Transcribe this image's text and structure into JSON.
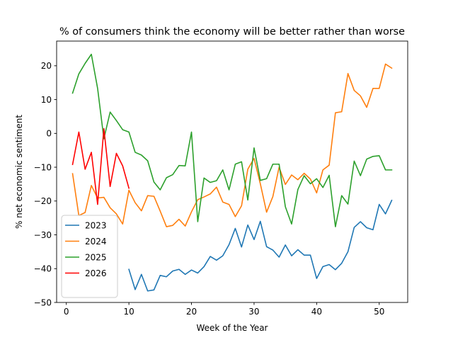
{
  "chart_data": {
    "type": "line",
    "title": "% of consumers think the economy will be better rather than worse",
    "xlabel": "Week of the Year",
    "ylabel": "% net economic sentiment",
    "xlim": [
      -1.55,
      54.55
    ],
    "ylim": [
      -50,
      27.3
    ],
    "xticks": [
      0,
      10,
      20,
      30,
      40,
      50
    ],
    "yticks": [
      -50,
      -40,
      -30,
      -20,
      -10,
      0,
      10,
      20
    ],
    "legend_position": "lower-left",
    "series": [
      {
        "name": "2023",
        "color": "#1f77b4",
        "x": [
          10,
          11,
          12,
          13,
          14,
          15,
          16,
          17,
          18,
          19,
          20,
          21,
          22,
          23,
          24,
          25,
          26,
          27,
          28,
          29,
          30,
          31,
          32,
          33,
          34,
          35,
          36,
          37,
          38,
          39,
          40,
          41,
          42,
          43,
          44,
          45,
          46,
          47,
          48,
          49,
          50,
          51,
          52
        ],
        "values": [
          -40.2,
          -46.2,
          -41.7,
          -46.6,
          -46.3,
          -42,
          -42.4,
          -40.7,
          -40.2,
          -41.7,
          -40.4,
          -41.3,
          -39.4,
          -36.4,
          -37.5,
          -36.2,
          -32.9,
          -28.1,
          -33.6,
          -27.1,
          -31.4,
          -26,
          -33.5,
          -34.5,
          -36.6,
          -33,
          -36.2,
          -34.4,
          -36,
          -36,
          -42.9,
          -39.4,
          -38.8,
          -40.3,
          -38.4,
          -35,
          -27.8,
          -26.1,
          -27.9,
          -28.5,
          -21,
          -23.8,
          -19.8
        ]
      },
      {
        "name": "2024",
        "color": "#ff7f0e",
        "x": [
          1,
          2,
          3,
          4,
          5,
          6,
          7,
          8,
          9,
          10,
          11,
          12,
          13,
          14,
          15,
          16,
          17,
          18,
          19,
          20,
          21,
          22,
          23,
          24,
          25,
          26,
          27,
          28,
          29,
          30,
          31,
          32,
          33,
          34,
          35,
          36,
          37,
          38,
          39,
          40,
          41,
          42,
          43,
          44,
          45,
          46,
          47,
          48,
          49,
          50,
          51,
          52
        ],
        "values": [
          -11.9,
          -24.3,
          -23.4,
          -15.4,
          -19.1,
          -18.9,
          -22,
          -23.8,
          -26.8,
          -16.8,
          -20.5,
          -22.9,
          -18.4,
          -18.6,
          -23,
          -27.6,
          -27.2,
          -25.4,
          -27.4,
          -23.2,
          -19.6,
          -18.8,
          -17.9,
          -15.9,
          -20.3,
          -21,
          -24.6,
          -21.4,
          -10.6,
          -7.4,
          -14.9,
          -23.3,
          -18.7,
          -10,
          -15.1,
          -12.3,
          -13.7,
          -11.8,
          -13.5,
          -17.6,
          -10.8,
          -9.4,
          6.1,
          6.4,
          17.7,
          12.7,
          11.1,
          7.7,
          13.3,
          13.3,
          20.5,
          19.3
        ]
      },
      {
        "name": "2025",
        "color": "#2ca02c",
        "x": [
          1,
          2,
          3,
          4,
          5,
          6,
          7,
          8,
          9,
          10,
          11,
          12,
          13,
          14,
          15,
          16,
          17,
          18,
          19,
          20,
          21,
          22,
          23,
          24,
          25,
          26,
          27,
          28,
          29,
          30,
          31,
          32,
          33,
          34,
          35,
          36,
          37,
          38,
          39,
          40,
          41,
          42,
          43,
          44,
          45,
          46,
          47,
          48,
          49,
          50,
          51,
          52
        ],
        "values": [
          11.9,
          17.6,
          20.7,
          23.4,
          13.3,
          -1.6,
          6.3,
          3.8,
          1.1,
          0.4,
          -5.6,
          -6.4,
          -8.1,
          -14.4,
          -16.7,
          -13.1,
          -12.2,
          -9.5,
          -9.6,
          0.4,
          -26.1,
          -13.2,
          -14.5,
          -14,
          -10.8,
          -16.7,
          -9.1,
          -8.4,
          -19.7,
          -4.3,
          -13.9,
          -13.4,
          -9.1,
          -9.1,
          -21.7,
          -26.8,
          -16.6,
          -12.5,
          -14.9,
          -13.4,
          -16,
          -12.4,
          -27.6,
          -18.4,
          -20.9,
          -8.2,
          -12.5,
          -7.6,
          -6.8,
          -6.6,
          -10.8,
          -10.8
        ]
      },
      {
        "name": "2026",
        "color": "#ff0000",
        "x": [
          1,
          2,
          3,
          4,
          5,
          6,
          7,
          8,
          9,
          10
        ],
        "values": [
          -9.2,
          0.4,
          -10.6,
          -5.6,
          -21,
          1.4,
          -15.7,
          -5.9,
          -9.6,
          -16.2
        ]
      }
    ]
  }
}
